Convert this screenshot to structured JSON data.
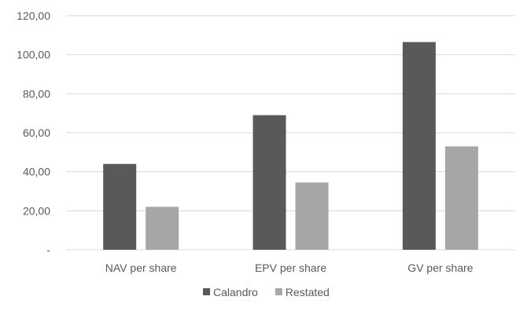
{
  "chart_data": {
    "type": "bar",
    "title": "",
    "xlabel": "",
    "ylabel": "",
    "categories": [
      "NAV per share",
      "EPV per share",
      "GV per share"
    ],
    "series": [
      {
        "name": "Calandro",
        "values": [
          44.0,
          69.0,
          106.5
        ],
        "color": "#595959"
      },
      {
        "name": "Restated",
        "values": [
          22.0,
          34.5,
          53.0
        ],
        "color": "#a6a6a6"
      }
    ],
    "ylim": [
      0,
      120
    ],
    "yticks": [
      {
        "value": 0,
        "label": "-"
      },
      {
        "value": 20,
        "label": "20,00"
      },
      {
        "value": 40,
        "label": "40,00"
      },
      {
        "value": 60,
        "label": "60,00"
      },
      {
        "value": 80,
        "label": "80,00"
      },
      {
        "value": 100,
        "label": "100,00"
      },
      {
        "value": 120,
        "label": "120,00"
      }
    ],
    "grid": true,
    "gridColor": "#d9d9d9",
    "legendPlacement": "bottom-center"
  }
}
